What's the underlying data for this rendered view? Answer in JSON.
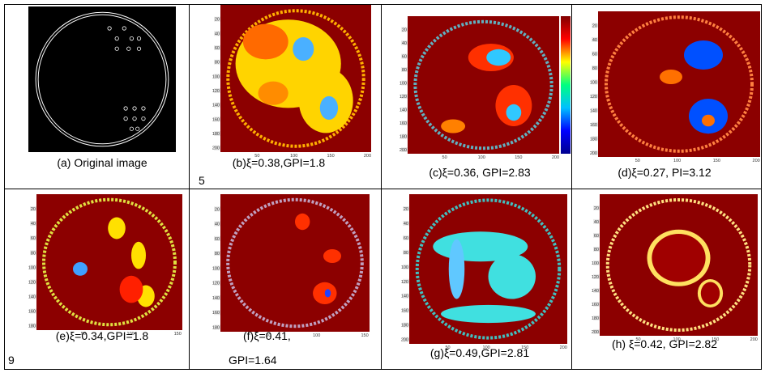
{
  "panels": [
    {
      "caption": [
        "(a) Original image"
      ]
    },
    {
      "caption": [
        "(b)ξ=0.38,GPI=1.8"
      ],
      "note": "5",
      "yticks": [
        20,
        40,
        60,
        80,
        100,
        120,
        140,
        160,
        180,
        200
      ],
      "xticks": [
        50,
        100,
        150,
        200
      ]
    },
    {
      "caption": [
        "(c)ξ=0.36, GPI=2.83"
      ],
      "yticks": [
        20,
        40,
        60,
        80,
        100,
        120,
        140,
        160,
        180,
        200
      ],
      "xticks": [
        50,
        100,
        150,
        200
      ]
    },
    {
      "caption": [
        "(d)ξ=0.27, PI=3.12"
      ],
      "yticks": [
        20,
        40,
        60,
        80,
        100,
        120,
        140,
        160,
        180,
        200
      ],
      "xticks": [
        50,
        100,
        150,
        200
      ]
    },
    {
      "caption": [
        "(e)ξ=0.34,GPI=1.8"
      ],
      "note": "9",
      "yticks": [
        20,
        40,
        60,
        80,
        100,
        120,
        140,
        160,
        180
      ],
      "xticks": [
        50,
        100,
        150
      ]
    },
    {
      "caption": [
        "(f)ξ=0.41,",
        "GPI=1.64"
      ],
      "yticks": [
        20,
        40,
        60,
        80,
        100,
        120,
        140,
        160,
        180
      ],
      "xticks": [
        50,
        100,
        150
      ]
    },
    {
      "caption": [
        "(g)ξ=0.49,GPI=2.81"
      ],
      "yticks": [
        20,
        40,
        60,
        80,
        100,
        120,
        140,
        160,
        180,
        200
      ],
      "xticks": [
        50,
        100,
        150,
        200
      ]
    },
    {
      "caption": [
        "(h) ξ=0.42, GPI=2.82"
      ],
      "yticks": [
        20,
        40,
        60,
        80,
        100,
        120,
        140,
        160,
        180,
        200
      ],
      "xticks": [
        50,
        100,
        150,
        200
      ]
    }
  ]
}
